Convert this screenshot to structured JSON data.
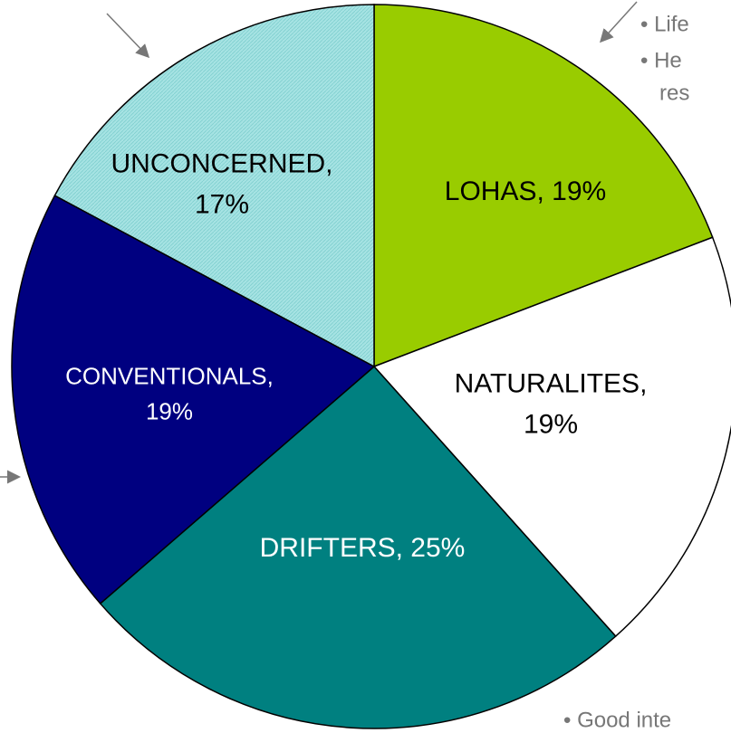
{
  "chart_data": {
    "type": "pie",
    "values": [
      19,
      19,
      25,
      19,
      17
    ],
    "value_labels": [
      [
        "LOHAS, 19%"
      ],
      [
        "NATURALITES,",
        "19%"
      ],
      [
        "DRIFTERS, 25%"
      ],
      [
        "CONVENTIONALS,",
        "19%"
      ],
      [
        "UNCONCERNED,",
        "17%"
      ]
    ],
    "colors": [
      "#99cc00",
      "#ffffff",
      "#008080",
      "#000080",
      "#a6e3e3"
    ],
    "label_colors": [
      "#000000",
      "#000000",
      "#ffffff",
      "#ffffff",
      "#000000"
    ],
    "annotations": [
      "• Life",
      "• He",
      "res",
      "• Good inte"
    ]
  }
}
